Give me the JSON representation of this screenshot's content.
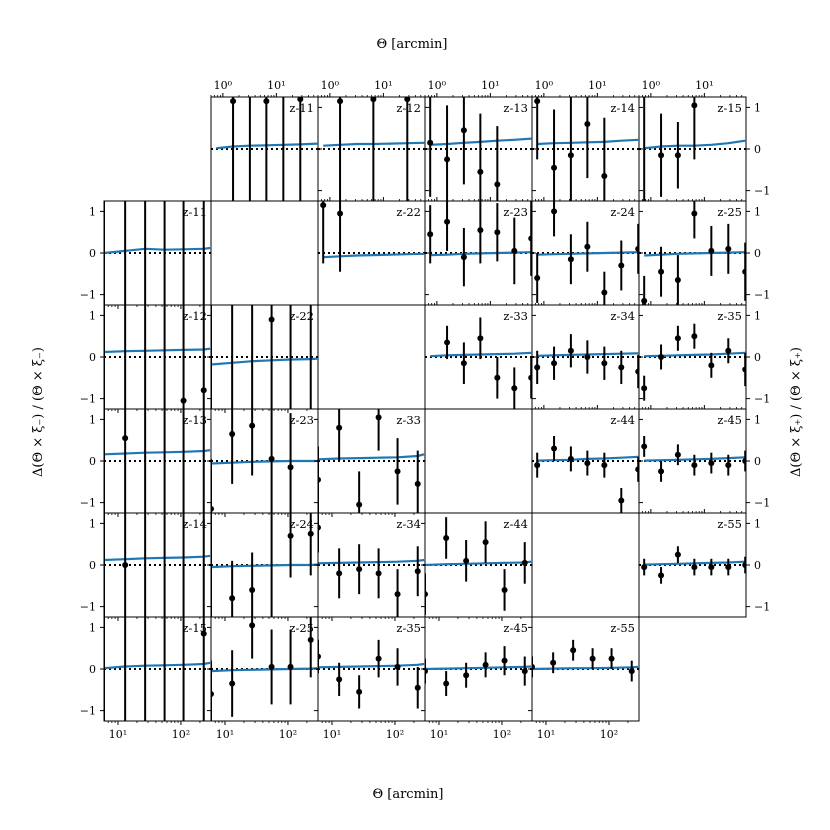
{
  "figure": {
    "top_xlabel": "Θ [arcmin]",
    "bottom_xlabel": "Θ [arcmin]",
    "left_ylabel": "Δ(Θ × ξ₋) / (Θ × ξ₋)",
    "right_ylabel": "Δ(Θ × ξ₊) / (Θ × ξ₊)",
    "colors": {
      "model_line": "#1f77b4",
      "points": "#000000",
      "zero_line": "#000000",
      "frame": "#000000"
    }
  },
  "chart_data": {
    "type": "scatter",
    "layout": "triangle-grid",
    "upper": {
      "name": "ξ+",
      "xscale": "log",
      "xlim": [
        0.6,
        60
      ],
      "ylim": [
        -1.25,
        1.25
      ],
      "x_ticks": [
        {
          "value": 1,
          "label": "10⁰"
        },
        {
          "value": 10,
          "label": "10¹"
        }
      ],
      "y_ticks": [
        -1,
        0,
        1
      ],
      "x_points": [
        0.75,
        1.55,
        3.2,
        6.5,
        13.5,
        28,
        58
      ]
    },
    "lower": {
      "name": "ξ−",
      "xscale": "log",
      "xlim": [
        6,
        300
      ],
      "ylim": [
        -1.25,
        1.25
      ],
      "x_ticks": [
        {
          "value": 10,
          "label": "10¹"
        },
        {
          "value": 100,
          "label": "10²"
        }
      ],
      "y_ticks": [
        -1,
        0,
        1
      ],
      "x_points": [
        6,
        13,
        27,
        55,
        110,
        230,
        290
      ]
    },
    "panels": [
      {
        "label": "z-11",
        "group": "upper",
        "row": 0,
        "col": 1,
        "y": [
          null,
          1.15,
          null,
          1.15,
          null,
          1.2,
          null
        ],
        "err": [
          0,
          8,
          8,
          8,
          8,
          8,
          0
        ],
        "model": [
          0.02,
          0.06,
          0.08,
          0.09,
          0.1,
          0.11,
          0.13
        ]
      },
      {
        "label": "z-12",
        "group": "upper",
        "row": 0,
        "col": 2,
        "y": [
          null,
          1.15,
          null,
          1.2,
          null,
          1.2,
          null
        ],
        "err": [
          0,
          8,
          0,
          8,
          0,
          8,
          0
        ],
        "model": [
          0.08,
          0.1,
          0.12,
          0.12,
          0.13,
          0.14,
          0.15
        ]
      },
      {
        "label": "z-13",
        "group": "upper",
        "row": 0,
        "col": 3,
        "y": [
          0.15,
          -0.25,
          0.45,
          -0.55,
          -0.85,
          null,
          null
        ],
        "err": [
          1.3,
          1.3,
          1.3,
          1.4,
          1.4,
          0,
          0
        ],
        "model": [
          0.1,
          0.12,
          0.15,
          0.17,
          0.2,
          0.22,
          0.25
        ]
      },
      {
        "label": "z-14",
        "group": "upper",
        "row": 0,
        "col": 4,
        "y": [
          1.15,
          -0.45,
          -0.15,
          0.6,
          -0.65,
          null,
          null
        ],
        "err": [
          1.4,
          1.4,
          1.4,
          1.3,
          1.4,
          0,
          0
        ],
        "model": [
          0.12,
          0.14,
          0.15,
          0.16,
          0.17,
          0.2,
          0.22
        ]
      },
      {
        "label": "z-15",
        "group": "upper",
        "row": 0,
        "col": 5,
        "y": [
          null,
          -0.15,
          -0.15,
          1.05,
          null,
          null,
          null
        ],
        "err": [
          8,
          1.0,
          0.8,
          1.3,
          0,
          0,
          0
        ],
        "model": [
          0.02,
          0.06,
          0.08,
          0.08,
          0.1,
          0.14,
          0.2
        ]
      },
      {
        "label": "z-22",
        "group": "upper",
        "row": 1,
        "col": 2,
        "y": [
          1.15,
          0.95,
          null,
          null,
          null,
          null,
          null
        ],
        "err": [
          1.4,
          1.4,
          0,
          0,
          0,
          0,
          0
        ],
        "model": [
          -0.1,
          -0.08,
          -0.06,
          -0.05,
          -0.04,
          -0.03,
          -0.02
        ]
      },
      {
        "label": "z-23",
        "group": "upper",
        "row": 1,
        "col": 3,
        "y": [
          0.45,
          0.75,
          -0.1,
          0.55,
          0.5,
          0.05,
          0.35
        ],
        "err": [
          0.7,
          0.7,
          0.7,
          0.8,
          0.7,
          0.8,
          0.9
        ],
        "model": [
          -0.05,
          -0.04,
          -0.02,
          -0.01,
          0,
          0.01,
          0.02
        ]
      },
      {
        "label": "z-24",
        "group": "upper",
        "row": 1,
        "col": 4,
        "y": [
          -0.6,
          1.0,
          -0.15,
          0.15,
          -0.95,
          -0.3,
          0.1
        ],
        "err": [
          0.6,
          0.6,
          0.6,
          0.6,
          0.5,
          0.6,
          0.6
        ],
        "model": [
          -0.04,
          -0.03,
          -0.02,
          -0.01,
          0,
          0.01,
          0.02
        ]
      },
      {
        "label": "z-25",
        "group": "upper",
        "row": 1,
        "col": 5,
        "y": [
          -1.15,
          -0.45,
          -0.65,
          0.95,
          0.05,
          0.1,
          -0.45
        ],
        "err": [
          0.6,
          0.6,
          0.6,
          0.6,
          0.6,
          0.6,
          0.7
        ],
        "model": [
          -0.06,
          -0.04,
          -0.02,
          -0.01,
          0,
          0.01,
          0.02
        ]
      },
      {
        "label": "z-33",
        "group": "upper",
        "row": 2,
        "col": 3,
        "y": [
          null,
          0.35,
          -0.15,
          0.45,
          -0.5,
          -0.75,
          -0.5
        ],
        "err": [
          0,
          0.4,
          0.5,
          0.5,
          0.5,
          0.5,
          0.5
        ],
        "model": [
          0.02,
          0.04,
          0.05,
          0.06,
          0.07,
          0.08,
          0.1
        ]
      },
      {
        "label": "z-34",
        "group": "upper",
        "row": 2,
        "col": 4,
        "y": [
          -0.25,
          -0.15,
          0.15,
          0.0,
          -0.15,
          -0.25,
          -0.35
        ],
        "err": [
          0.4,
          0.4,
          0.4,
          0.4,
          0.4,
          0.4,
          0.4
        ],
        "model": [
          0.03,
          0.04,
          0.05,
          0.06,
          0.07,
          0.08,
          0.09
        ]
      },
      {
        "label": "z-35",
        "group": "upper",
        "row": 2,
        "col": 5,
        "y": [
          -0.75,
          0.0,
          0.45,
          0.5,
          -0.2,
          0.15,
          -0.3
        ],
        "err": [
          0.3,
          0.3,
          0.3,
          0.3,
          0.3,
          0.3,
          0.4
        ],
        "model": [
          0.02,
          0.03,
          0.04,
          0.05,
          0.06,
          0.08,
          0.1
        ]
      },
      {
        "label": "z-44",
        "group": "upper",
        "row": 3,
        "col": 4,
        "y": [
          -0.1,
          0.3,
          0.05,
          -0.05,
          -0.1,
          -0.95,
          -0.2
        ],
        "err": [
          0.3,
          0.3,
          0.3,
          0.3,
          0.3,
          0.3,
          0.3
        ],
        "model": [
          0.01,
          0.02,
          0.03,
          0.05,
          0.06,
          0.08,
          0.1
        ]
      },
      {
        "label": "z-45",
        "group": "upper",
        "row": 3,
        "col": 5,
        "y": [
          0.35,
          -0.25,
          0.15,
          -0.1,
          -0.05,
          -0.1,
          0.0
        ],
        "err": [
          0.25,
          0.25,
          0.25,
          0.25,
          0.25,
          0.25,
          0.25
        ],
        "model": [
          0.01,
          0.02,
          0.03,
          0.04,
          0.05,
          0.07,
          0.09
        ]
      },
      {
        "label": "z-55",
        "group": "upper",
        "row": 4,
        "col": 5,
        "y": [
          -0.05,
          -0.25,
          0.25,
          -0.05,
          -0.05,
          -0.05,
          0.0
        ],
        "err": [
          0.2,
          0.2,
          0.2,
          0.2,
          0.2,
          0.2,
          0.2
        ],
        "model": [
          0.01,
          0.02,
          0.03,
          0.04,
          0.05,
          0.06,
          0.08
        ]
      },
      {
        "label": "z-11",
        "group": "lower",
        "row": 1,
        "col": 0,
        "y": [
          null,
          null,
          null,
          null,
          null,
          null,
          null
        ],
        "err": [
          8,
          8,
          8,
          8,
          8,
          8,
          0
        ],
        "model": [
          0.0,
          0.05,
          0.1,
          0.08,
          0.09,
          0.1,
          0.12
        ]
      },
      {
        "label": "z-12",
        "group": "lower",
        "row": 2,
        "col": 0,
        "y": [
          null,
          null,
          null,
          null,
          -1.05,
          -0.8,
          null
        ],
        "err": [
          8,
          8,
          8,
          8,
          8,
          8,
          0
        ],
        "model": [
          0.12,
          0.14,
          0.15,
          0.16,
          0.17,
          0.18,
          0.2
        ]
      },
      {
        "label": "z-13",
        "group": "lower",
        "row": 3,
        "col": 0,
        "y": [
          null,
          0.55,
          null,
          null,
          null,
          null,
          null
        ],
        "err": [
          8,
          8,
          8,
          8,
          8,
          8,
          0
        ],
        "model": [
          0.16,
          0.18,
          0.2,
          0.21,
          0.22,
          0.24,
          0.26
        ]
      },
      {
        "label": "z-14",
        "group": "lower",
        "row": 4,
        "col": 0,
        "y": [
          null,
          0.0,
          null,
          null,
          null,
          null,
          null
        ],
        "err": [
          8,
          8,
          8,
          2,
          8,
          8,
          0
        ],
        "model": [
          0.12,
          0.14,
          0.16,
          0.17,
          0.18,
          0.2,
          0.22
        ]
      },
      {
        "label": "z-15",
        "group": "lower",
        "row": 5,
        "col": 0,
        "y": [
          null,
          null,
          null,
          null,
          null,
          0.85,
          null
        ],
        "err": [
          1.4,
          8,
          8,
          8,
          8,
          8,
          0
        ],
        "model": [
          0.02,
          0.06,
          0.08,
          0.09,
          0.1,
          0.12,
          0.15
        ]
      },
      {
        "label": "z-22",
        "group": "lower",
        "row": 2,
        "col": 1,
        "y": [
          null,
          null,
          null,
          0.9,
          null,
          null,
          null
        ],
        "err": [
          8,
          8,
          8,
          8,
          8,
          8,
          0
        ],
        "model": [
          -0.18,
          -0.14,
          -0.1,
          -0.08,
          -0.06,
          -0.05,
          -0.04
        ]
      },
      {
        "label": "z-23",
        "group": "lower",
        "row": 3,
        "col": 1,
        "y": [
          -1.15,
          0.65,
          0.85,
          0.05,
          -0.15,
          null,
          null
        ],
        "err": [
          1.2,
          1.2,
          1.2,
          1.3,
          1.3,
          0,
          0
        ],
        "model": [
          -0.06,
          -0.04,
          -0.02,
          -0.01,
          0,
          0.0,
          0.0
        ]
      },
      {
        "label": "z-24",
        "group": "lower",
        "row": 4,
        "col": 1,
        "y": [
          null,
          -0.8,
          -0.6,
          null,
          0.7,
          0.75,
          null
        ],
        "err": [
          8,
          0.9,
          0.9,
          8,
          1.0,
          1.0,
          0
        ],
        "model": [
          -0.05,
          -0.03,
          -0.02,
          -0.01,
          0,
          0,
          0.01
        ]
      },
      {
        "label": "z-25",
        "group": "lower",
        "row": 5,
        "col": 1,
        "y": [
          -0.6,
          -0.35,
          1.05,
          0.05,
          0.05,
          0.7,
          null
        ],
        "err": [
          0.8,
          0.8,
          0.8,
          0.9,
          0.9,
          0.9,
          0
        ],
        "model": [
          -0.05,
          -0.03,
          -0.02,
          -0.01,
          0.0,
          0.01,
          0.02
        ]
      },
      {
        "label": "z-33",
        "group": "lower",
        "row": 3,
        "col": 2,
        "y": [
          -0.45,
          0.8,
          -1.05,
          1.05,
          -0.25,
          -0.55,
          null
        ],
        "err": [
          0.8,
          0.8,
          0.8,
          0.8,
          0.8,
          0.8,
          0
        ],
        "model": [
          0.04,
          0.06,
          0.07,
          0.08,
          0.09,
          0.12,
          0.16
        ]
      },
      {
        "label": "z-34",
        "group": "lower",
        "row": 4,
        "col": 2,
        "y": [
          0.9,
          -0.2,
          -0.1,
          -0.2,
          -0.7,
          -0.15,
          null
        ],
        "err": [
          0.6,
          0.6,
          0.6,
          0.6,
          0.6,
          0.6,
          0
        ],
        "model": [
          0.04,
          0.05,
          0.06,
          0.07,
          0.08,
          0.1,
          0.12
        ]
      },
      {
        "label": "z-35",
        "group": "lower",
        "row": 5,
        "col": 2,
        "y": [
          0.3,
          -0.25,
          -0.55,
          0.25,
          0.05,
          -0.45,
          null
        ],
        "err": [
          0.4,
          0.4,
          0.4,
          0.45,
          0.45,
          0.5,
          0
        ],
        "model": [
          0.04,
          0.05,
          0.06,
          0.07,
          0.08,
          0.1,
          0.12
        ]
      },
      {
        "label": "z-44",
        "group": "lower",
        "row": 4,
        "col": 3,
        "y": [
          -0.7,
          0.65,
          0.1,
          0.55,
          -0.6,
          0.05,
          null
        ],
        "err": [
          0.5,
          0.5,
          0.5,
          0.5,
          0.5,
          0.5,
          0
        ],
        "model": [
          0.0,
          0.02,
          0.03,
          0.04,
          0.05,
          0.06,
          0.08
        ]
      },
      {
        "label": "z-45",
        "group": "lower",
        "row": 5,
        "col": 3,
        "y": [
          -0.05,
          -0.35,
          -0.15,
          0.1,
          0.2,
          -0.05,
          null
        ],
        "err": [
          0.3,
          0.3,
          0.3,
          0.3,
          0.35,
          0.35,
          0
        ],
        "model": [
          0.0,
          0.01,
          0.02,
          0.03,
          0.04,
          0.05,
          0.06
        ]
      },
      {
        "label": "z-55",
        "group": "lower",
        "row": 5,
        "col": 4,
        "y": [
          0.05,
          0.15,
          0.45,
          0.25,
          0.25,
          -0.05,
          null
        ],
        "err": [
          0.25,
          0.25,
          0.25,
          0.25,
          0.25,
          0.25,
          0
        ],
        "model": [
          0.0,
          0.01,
          0.02,
          0.02,
          0.03,
          0.04,
          0.05
        ]
      }
    ]
  }
}
